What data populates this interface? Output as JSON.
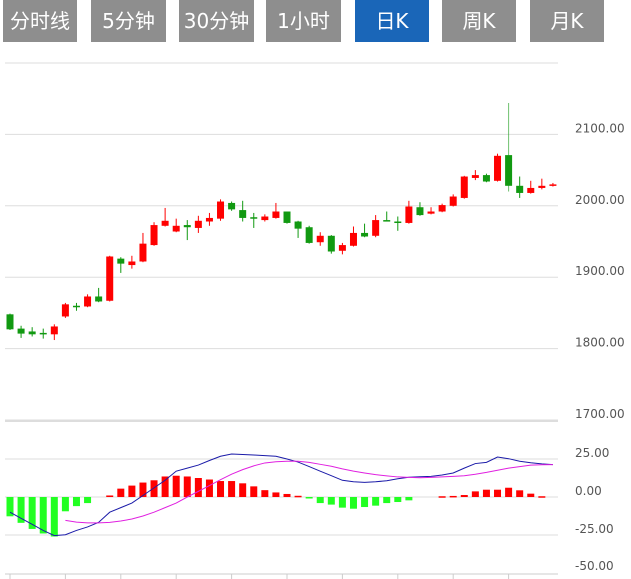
{
  "tabs": [
    {
      "label": "分时线"
    },
    {
      "label": "5分钟"
    },
    {
      "label": "30分钟"
    },
    {
      "label": "1小时"
    },
    {
      "label": "日K"
    },
    {
      "label": "周K"
    },
    {
      "label": "月K"
    }
  ],
  "active_tab": "日K",
  "colors": {
    "tab_bg": "#8e8e8e",
    "tab_active": "#1a66b8",
    "up": "#ff0000",
    "down": "#119911",
    "macd_down": "#22ff22",
    "dif": "#1a1aa8",
    "dea": "#e020e0"
  },
  "chart_data": [
    {
      "type": "candlestick",
      "ylim": [
        1700,
        2200
      ],
      "y_ticks": [
        "2100.00",
        "2000.00",
        "1900.00",
        "1800.00",
        "1700.00"
      ],
      "y_tick_values": [
        2100,
        2000,
        1900,
        1800,
        1700
      ],
      "grid": true,
      "ohlc": [
        [
          1848,
          1849,
          1826,
          1827
        ],
        [
          1828,
          1832,
          1815,
          1821
        ],
        [
          1824,
          1830,
          1817,
          1820
        ],
        [
          1822,
          1828,
          1814,
          1821
        ],
        [
          1820,
          1834,
          1812,
          1831
        ],
        [
          1845,
          1864,
          1843,
          1862
        ],
        [
          1860,
          1864,
          1853,
          1858
        ],
        [
          1859,
          1876,
          1858,
          1873
        ],
        [
          1873,
          1885,
          1865,
          1866
        ],
        [
          1867,
          1930,
          1866,
          1929
        ],
        [
          1926,
          1928,
          1906,
          1919
        ],
        [
          1917,
          1930,
          1912,
          1922
        ],
        [
          1922,
          1962,
          1921,
          1947
        ],
        [
          1945,
          1977,
          1944,
          1973
        ],
        [
          1972,
          1997,
          1971,
          1979
        ],
        [
          1964,
          1982,
          1963,
          1972
        ],
        [
          1973,
          1980,
          1952,
          1970
        ],
        [
          1969,
          1986,
          1962,
          1979
        ],
        [
          1978,
          1990,
          1972,
          1983
        ],
        [
          1982,
          2009,
          1979,
          2006
        ],
        [
          2004,
          2006,
          1993,
          1995
        ],
        [
          1994,
          2007,
          1978,
          1983
        ],
        [
          1984,
          1990,
          1969,
          1982
        ],
        [
          1980,
          1988,
          1978,
          1985
        ],
        [
          1983,
          2004,
          1982,
          1992
        ],
        [
          1992,
          1992,
          1975,
          1976
        ],
        [
          1978,
          1979,
          1955,
          1968
        ],
        [
          1970,
          1972,
          1947,
          1948
        ],
        [
          1949,
          1963,
          1944,
          1958
        ],
        [
          1958,
          1959,
          1933,
          1936
        ],
        [
          1937,
          1948,
          1932,
          1945
        ],
        [
          1944,
          1971,
          1943,
          1962
        ],
        [
          1962,
          1975,
          1956,
          1957
        ],
        [
          1958,
          1987,
          1956,
          1980
        ],
        [
          1980,
          1992,
          1978,
          1979
        ],
        [
          1978,
          1985,
          1965,
          1977
        ],
        [
          1976,
          2007,
          1975,
          1999
        ],
        [
          1998,
          2005,
          1986,
          1987
        ],
        [
          1989,
          1998,
          1988,
          1992
        ],
        [
          1992,
          2003,
          1991,
          2001
        ],
        [
          2000,
          2016,
          1999,
          2013
        ],
        [
          2011,
          2042,
          2010,
          2041
        ],
        [
          2039,
          2050,
          2036,
          2043
        ],
        [
          2043,
          2045,
          2033,
          2034
        ],
        [
          2035,
          2073,
          2034,
          2070
        ],
        [
          2071,
          2144,
          2020,
          2028
        ],
        [
          2028,
          2041,
          2011,
          2018
        ],
        [
          2018,
          2035,
          2017,
          2025
        ],
        [
          2025,
          2038,
          2023,
          2028
        ],
        [
          2028,
          2032,
          2027,
          2030
        ]
      ]
    },
    {
      "type": "macd",
      "ylim": [
        -50,
        50
      ],
      "y_ticks": [
        "25.00",
        "0.00",
        "-25.00",
        "-50.00"
      ],
      "y_tick_values": [
        25,
        0,
        -25,
        -50
      ],
      "grid": true,
      "histogram": [
        -12.7,
        -17,
        -21,
        -24,
        -26,
        -9.4,
        -6,
        -4,
        0,
        1,
        5.5,
        7.5,
        9.5,
        11,
        13.5,
        14,
        13.5,
        12.5,
        11.5,
        10.5,
        10.5,
        9,
        7,
        4.5,
        3,
        2,
        0.8,
        -0.5,
        -4,
        -5,
        -7,
        -7.7,
        -6.6,
        -5.7,
        -4,
        -3.3,
        -2.2,
        0,
        0,
        0.5,
        0.7,
        1.3,
        3.7,
        4.8,
        4.8,
        6.1,
        4.4,
        2.2,
        0.5,
        0
      ],
      "dif": [
        -10,
        -14,
        -18,
        -22,
        -25.4,
        -24.8,
        -22,
        -19.7,
        -16.7,
        -10,
        -7,
        -4,
        1,
        6,
        11,
        17,
        19,
        21,
        24,
        26.8,
        28.3,
        28,
        27.6,
        27.2,
        26.8,
        25,
        23,
        20,
        17,
        14,
        11,
        10,
        9.6,
        10,
        10.7,
        12,
        13,
        13.3,
        13.6,
        14.5,
        15.8,
        19,
        22,
        22.8,
        26.3,
        25.2,
        23.5,
        22.5,
        21.8,
        21.3
      ],
      "dea": [
        null,
        null,
        null,
        null,
        null,
        -15.4,
        -16.5,
        -17,
        -17,
        -16.7,
        -15.8,
        -14.5,
        -12.5,
        -10,
        -7,
        -4,
        0,
        3.7,
        7.5,
        11.4,
        15,
        18,
        20.5,
        22.4,
        23.2,
        23.5,
        23.5,
        22.8,
        21.5,
        20.2,
        18.5,
        17,
        15.8,
        14.7,
        13.9,
        13.2,
        12.9,
        12.7,
        12.9,
        13.2,
        13.6,
        14,
        15,
        16.2,
        17.6,
        19,
        20,
        21,
        21.2,
        21.3
      ]
    }
  ]
}
